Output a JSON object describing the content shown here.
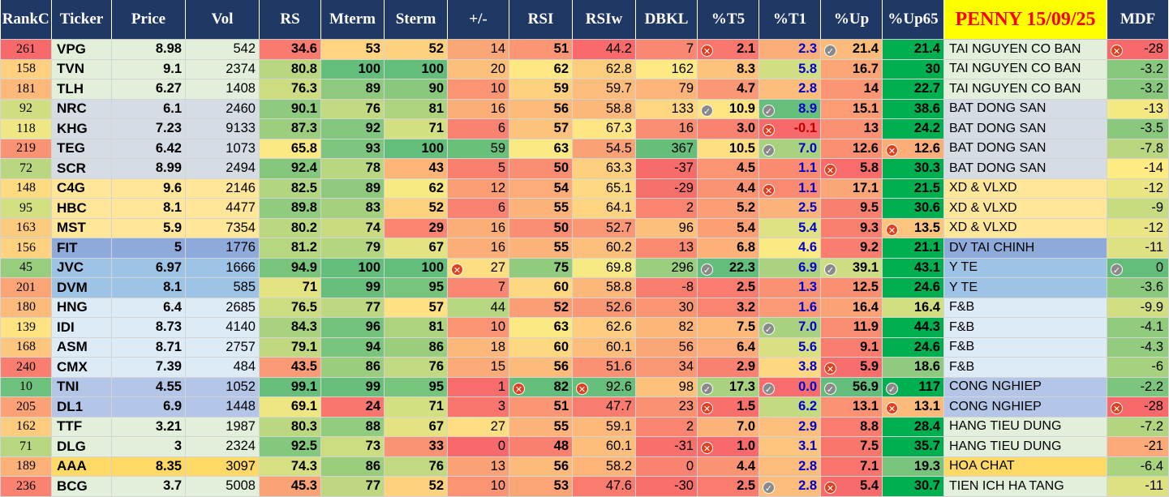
{
  "headers": [
    "RankC",
    "Ticker",
    "Price",
    "Vol",
    "RS",
    "Mterm",
    "Sterm",
    "+/-",
    "RSI",
    "RSIw",
    "DBKL",
    "%T5",
    "%T1",
    "%Up",
    "%Up65",
    "PENNY 15/09/25",
    "MDF"
  ],
  "colors": {
    "header_bg": "#1f3864",
    "penny_bg": "#ffff00",
    "penny_text": "#ff0000",
    "t1_positive": "#0000cc",
    "t1_negative": "#c00000",
    "icon_x": "#e0401f",
    "icon_check": "#8a8a8a",
    "heat_low": "#f8696b",
    "heat_mid": "#ffeb84",
    "heat_high": "#63be7b",
    "up_green": "#00b050"
  },
  "rows": [
    {
      "rank": "261",
      "ticker": "VPG",
      "price": "8.98",
      "vol": "542",
      "rs": "34.6",
      "mterm": "53",
      "sterm": "52",
      "pm": "14",
      "rsi": "51",
      "rsiw": "44.2",
      "dbkl": "7",
      "t5": "2.1",
      "t5_icon": "x",
      "t1": "2.3",
      "up": "21.4",
      "up_icon": "check",
      "up65": "21.4",
      "sector": "TAI NGUYEN CO BAN",
      "mdf": "-28",
      "mdf_icon": "x",
      "group_bg": "#e2efda"
    },
    {
      "rank": "158",
      "ticker": "TVN",
      "price": "9.1",
      "vol": "2374",
      "rs": "80.8",
      "mterm": "100",
      "sterm": "100",
      "pm": "20",
      "rsi": "62",
      "rsiw": "62.8",
      "dbkl": "162",
      "t5": "8.3",
      "t1": "5.8",
      "up": "16.7",
      "up65": "30",
      "sector": "TAI NGUYEN CO BAN",
      "mdf": "-3.2",
      "group_bg": "#e2efda"
    },
    {
      "rank": "181",
      "ticker": "TLH",
      "price": "6.27",
      "vol": "1408",
      "rs": "76.3",
      "mterm": "89",
      "sterm": "90",
      "pm": "10",
      "rsi": "59",
      "rsiw": "59.7",
      "dbkl": "79",
      "t5": "4.7",
      "t1": "2.8",
      "up": "14",
      "up65": "22.7",
      "sector": "TAI NGUYEN CO BAN",
      "mdf": "-3.2",
      "group_bg": "#e2efda"
    },
    {
      "rank": "92",
      "ticker": "NRC",
      "price": "6.1",
      "vol": "2460",
      "rs": "90.1",
      "mterm": "76",
      "sterm": "81",
      "pm": "16",
      "rsi": "56",
      "rsiw": "58.8",
      "dbkl": "133",
      "t5": "10.9",
      "t5_icon": "check",
      "t1": "8.9",
      "t1_icon": "check",
      "up": "15.1",
      "up65": "38.6",
      "sector": "BAT DONG SAN",
      "mdf": "-13",
      "group_bg": "#d6dce4"
    },
    {
      "rank": "118",
      "ticker": "KHG",
      "price": "7.23",
      "vol": "9133",
      "rs": "87.3",
      "mterm": "92",
      "sterm": "71",
      "pm": "6",
      "rsi": "57",
      "rsiw": "67.3",
      "dbkl": "16",
      "t5": "3.0",
      "t1": "-0.1",
      "t1_icon": "x",
      "up": "13",
      "up65": "24.2",
      "sector": "BAT DONG SAN",
      "mdf": "-3.5",
      "group_bg": "#d6dce4"
    },
    {
      "rank": "219",
      "ticker": "TEG",
      "price": "6.42",
      "vol": "1073",
      "rs": "65.8",
      "mterm": "93",
      "sterm": "100",
      "pm": "59",
      "rsi": "63",
      "rsiw": "54.5",
      "dbkl": "367",
      "t5": "10.5",
      "t1": "7.0",
      "t1_icon": "check",
      "up": "12.6",
      "up65": "12.6",
      "up65_icon": "x",
      "sector": "BAT DONG SAN",
      "mdf": "-7.8",
      "group_bg": "#d6dce4"
    },
    {
      "rank": "72",
      "ticker": "SCR",
      "price": "8.99",
      "vol": "2494",
      "rs": "92.4",
      "mterm": "78",
      "sterm": "43",
      "pm": "5",
      "rsi": "50",
      "rsiw": "63.3",
      "dbkl": "-37",
      "t5": "4.5",
      "t1": "1.1",
      "up": "5.8",
      "up_icon": "x",
      "up65": "30.3",
      "sector": "BAT DONG SAN",
      "mdf": "-14",
      "group_bg": "#d6dce4"
    },
    {
      "rank": "148",
      "ticker": "C4G",
      "price": "9.6",
      "vol": "2146",
      "rs": "82.5",
      "mterm": "89",
      "sterm": "62",
      "pm": "12",
      "rsi": "54",
      "rsiw": "65.1",
      "dbkl": "-29",
      "t5": "4.4",
      "t1": "1.1",
      "t1_icon": "x",
      "up": "17.1",
      "up65": "21.5",
      "sector": "XD & VLXD",
      "mdf": "-12",
      "group_bg": "#ffe699"
    },
    {
      "rank": "95",
      "ticker": "HBC",
      "price": "8.1",
      "vol": "4477",
      "rs": "89.8",
      "mterm": "83",
      "sterm": "52",
      "pm": "6",
      "rsi": "55",
      "rsiw": "64.1",
      "dbkl": "2",
      "t5": "5.2",
      "t1": "2.5",
      "up": "9.5",
      "up65": "30.6",
      "sector": "XD & VLXD",
      "mdf": "-9",
      "group_bg": "#ffe699"
    },
    {
      "rank": "163",
      "ticker": "MST",
      "price": "5.9",
      "vol": "7354",
      "rs": "80.2",
      "mterm": "74",
      "sterm": "29",
      "pm": "16",
      "rsi": "50",
      "rsiw": "52.7",
      "dbkl": "96",
      "t5": "5.4",
      "t1": "5.4",
      "up": "9.3",
      "up65": "13.5",
      "up65_icon": "x",
      "sector": "XD & VLXD",
      "mdf": "-12",
      "group_bg": "#ffe699"
    },
    {
      "rank": "156",
      "ticker": "FIT",
      "price": "5",
      "vol": "1776",
      "rs": "81.2",
      "mterm": "79",
      "sterm": "67",
      "pm": "16",
      "rsi": "55",
      "rsiw": "60.2",
      "dbkl": "13",
      "t5": "6.8",
      "t1": "4.6",
      "up": "9.2",
      "up65": "21.1",
      "sector": "DV TAI CHINH",
      "mdf": "-11",
      "group_bg": "#8eaadb"
    },
    {
      "rank": "45",
      "ticker": "JVC",
      "price": "6.97",
      "vol": "1666",
      "rs": "94.9",
      "mterm": "100",
      "sterm": "100",
      "pm": "27",
      "pm_icon": "x",
      "rsi": "75",
      "rsiw": "69.8",
      "dbkl": "296",
      "t5": "22.3",
      "t5_icon": "check",
      "t1": "6.9",
      "up": "39.1",
      "up_icon": "check",
      "up65": "43.1",
      "sector": "Y TE",
      "mdf": "0",
      "mdf_icon": "check",
      "group_bg": "#9dc3e6"
    },
    {
      "rank": "201",
      "ticker": "DVM",
      "price": "8.1",
      "vol": "585",
      "rs": "71",
      "mterm": "99",
      "sterm": "95",
      "pm": "7",
      "rsi": "60",
      "rsiw": "58.8",
      "dbkl": "-8",
      "t5": "2.5",
      "t1": "1.3",
      "up": "12.5",
      "up65": "24.6",
      "sector": "Y TE",
      "mdf": "-3.6",
      "group_bg": "#9dc3e6"
    },
    {
      "rank": "180",
      "ticker": "HNG",
      "price": "6.4",
      "vol": "2685",
      "rs": "76.5",
      "mterm": "77",
      "sterm": "57",
      "pm": "44",
      "rsi": "52",
      "rsiw": "52.6",
      "dbkl": "30",
      "t5": "3.2",
      "t1": "1.6",
      "up": "16.4",
      "up65": "16.4",
      "sector": "F&B",
      "mdf": "-9.9",
      "group_bg": "#ddebf7"
    },
    {
      "rank": "139",
      "ticker": "IDI",
      "price": "8.73",
      "vol": "4140",
      "rs": "84.3",
      "mterm": "96",
      "sterm": "81",
      "pm": "10",
      "rsi": "63",
      "rsiw": "62.6",
      "dbkl": "82",
      "t5": "7.5",
      "t1": "7.0",
      "t1_icon": "check",
      "up": "11.9",
      "up65": "44.3",
      "sector": "F&B",
      "mdf": "-4.1",
      "group_bg": "#ddebf7"
    },
    {
      "rank": "168",
      "ticker": "ASM",
      "price": "8.71",
      "vol": "2757",
      "rs": "79.1",
      "mterm": "94",
      "sterm": "86",
      "pm": "18",
      "rsi": "60",
      "rsiw": "60.1",
      "dbkl": "56",
      "t5": "6.4",
      "t1": "5.6",
      "up": "9.1",
      "up65": "24.6",
      "sector": "F&B",
      "mdf": "-4.3",
      "group_bg": "#ddebf7"
    },
    {
      "rank": "240",
      "ticker": "CMX",
      "price": "7.39",
      "vol": "484",
      "rs": "43.5",
      "mterm": "86",
      "sterm": "76",
      "pm": "15",
      "rsi": "56",
      "rsiw": "51.6",
      "dbkl": "34",
      "t5": "2.9",
      "t1": "3.8",
      "up": "5.9",
      "up_icon": "x",
      "up65": "18.6",
      "sector": "F&B",
      "mdf": "-6",
      "group_bg": "#ddebf7"
    },
    {
      "rank": "10",
      "ticker": "TNI",
      "price": "4.55",
      "vol": "1052",
      "rs": "99.1",
      "mterm": "99",
      "sterm": "95",
      "pm": "1",
      "rsi": "82",
      "rsi_icon": "x",
      "rsiw": "92.6",
      "rsiw_icon": "x",
      "dbkl": "98",
      "t5": "17.3",
      "t5_icon": "check",
      "t1": "0.0",
      "t1_icon": "check",
      "up": "56.9",
      "up_icon": "check",
      "up65": "117",
      "up65_icon": "check",
      "sector": "CONG NGHIEP",
      "mdf": "-2.2",
      "group_bg": "#b4c6e7"
    },
    {
      "rank": "205",
      "ticker": "DL1",
      "price": "6.9",
      "vol": "1448",
      "rs": "69.1",
      "mterm": "24",
      "sterm": "71",
      "pm": "3",
      "rsi": "51",
      "rsiw": "47.7",
      "dbkl": "23",
      "t5": "1.5",
      "t5_icon": "x",
      "t1": "6.2",
      "up": "13.1",
      "up65": "13.1",
      "up65_icon": "x",
      "sector": "CONG NGHIEP",
      "mdf": "-28",
      "mdf_icon": "x",
      "group_bg": "#b4c6e7"
    },
    {
      "rank": "162",
      "ticker": "TTF",
      "price": "3.21",
      "vol": "1987",
      "rs": "80.3",
      "mterm": "88",
      "sterm": "67",
      "pm": "27",
      "rsi": "55",
      "rsiw": "59.1",
      "dbkl": "2",
      "t5": "7.0",
      "t1": "2.9",
      "up": "8.8",
      "up65": "28.4",
      "sector": "HANG TIEU DUNG",
      "mdf": "-7.2",
      "group_bg": "#e2efda"
    },
    {
      "rank": "71",
      "ticker": "DLG",
      "price": "3",
      "vol": "2324",
      "rs": "92.5",
      "mterm": "73",
      "sterm": "33",
      "pm": "0",
      "rsi": "48",
      "rsiw": "60.1",
      "dbkl": "-31",
      "t5": "1.0",
      "t5_icon": "x",
      "t1": "3.1",
      "up": "7.5",
      "up65": "35.7",
      "sector": "HANG TIEU DUNG",
      "mdf": "-21",
      "group_bg": "#e2efda"
    },
    {
      "rank": "189",
      "ticker": "AAA",
      "price": "8.35",
      "vol": "3097",
      "rs": "74.3",
      "mterm": "86",
      "sterm": "76",
      "pm": "13",
      "rsi": "56",
      "rsiw": "58.2",
      "dbkl": "0",
      "t5": "4.4",
      "t1": "2.8",
      "up": "7.1",
      "up65": "19.3",
      "sector": "HOA CHAT",
      "mdf": "-6.4",
      "group_bg": "#ffd966"
    },
    {
      "rank": "236",
      "ticker": "BCG",
      "price": "3.7",
      "vol": "5008",
      "rs": "45.3",
      "mterm": "77",
      "sterm": "52",
      "pm": "10",
      "rsi": "53",
      "rsiw": "47.6",
      "dbkl": "-30",
      "t5": "2.5",
      "t1": "2.8",
      "t1_icon": "check",
      "up": "5.4",
      "up_icon": "x",
      "up65": "30.7",
      "sector": "TIEN ICH HA TANG",
      "mdf": "-11",
      "group_bg": "#e2efda"
    }
  ]
}
